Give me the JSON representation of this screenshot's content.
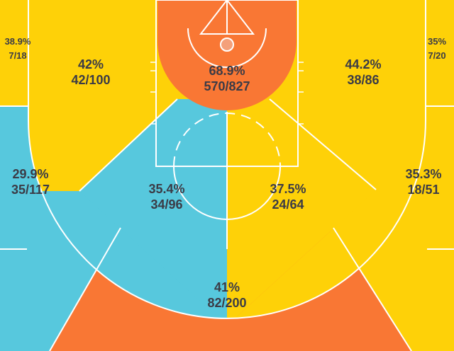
{
  "colors": {
    "hot": "#f97734",
    "average": "#fed108",
    "cold": "#57c8dd",
    "line": "#ffffff",
    "text": "#3b3b46"
  },
  "chart_data": {
    "type": "heatmap",
    "title": "",
    "zones": [
      {
        "id": "restricted-area",
        "pct": "68.9%",
        "made": 570,
        "attempts": 827,
        "fraction": "570/827",
        "color_key": "hot"
      },
      {
        "id": "paint-left",
        "pct": "35.4%",
        "made": 34,
        "attempts": 96,
        "fraction": "34/96",
        "color_key": "cold"
      },
      {
        "id": "paint-right",
        "pct": "37.5%",
        "made": 24,
        "attempts": 64,
        "fraction": "24/64",
        "color_key": "average"
      },
      {
        "id": "midrange-left-baseline",
        "pct": "42%",
        "made": 42,
        "attempts": 100,
        "fraction": "42/100",
        "color_key": "average"
      },
      {
        "id": "midrange-right-baseline",
        "pct": "44.2%",
        "made": 38,
        "attempts": 86,
        "fraction": "38/86",
        "color_key": "average"
      },
      {
        "id": "midrange-left-wing",
        "pct": "29.9%",
        "made": 35,
        "attempts": 117,
        "fraction": "35/117",
        "color_key": "cold"
      },
      {
        "id": "midrange-right-wing",
        "pct": "35.3%",
        "made": 18,
        "attempts": 51,
        "fraction": "18/51",
        "color_key": "average"
      },
      {
        "id": "left-corner-three",
        "pct": "38.9%",
        "made": 7,
        "attempts": 18,
        "fraction": "7/18",
        "color_key": "average"
      },
      {
        "id": "right-corner-three",
        "pct": "35%",
        "made": 7,
        "attempts": 20,
        "fraction": "7/20",
        "color_key": "average"
      },
      {
        "id": "top-of-key-three",
        "pct": "41%",
        "made": 82,
        "attempts": 200,
        "fraction": "82/200",
        "color_key": "hot"
      },
      {
        "id": "left-wing-three",
        "pct": "",
        "made": null,
        "attempts": null,
        "fraction": "",
        "color_key": "cold"
      },
      {
        "id": "right-wing-three",
        "pct": "",
        "made": null,
        "attempts": null,
        "fraction": "",
        "color_key": "average"
      }
    ]
  }
}
